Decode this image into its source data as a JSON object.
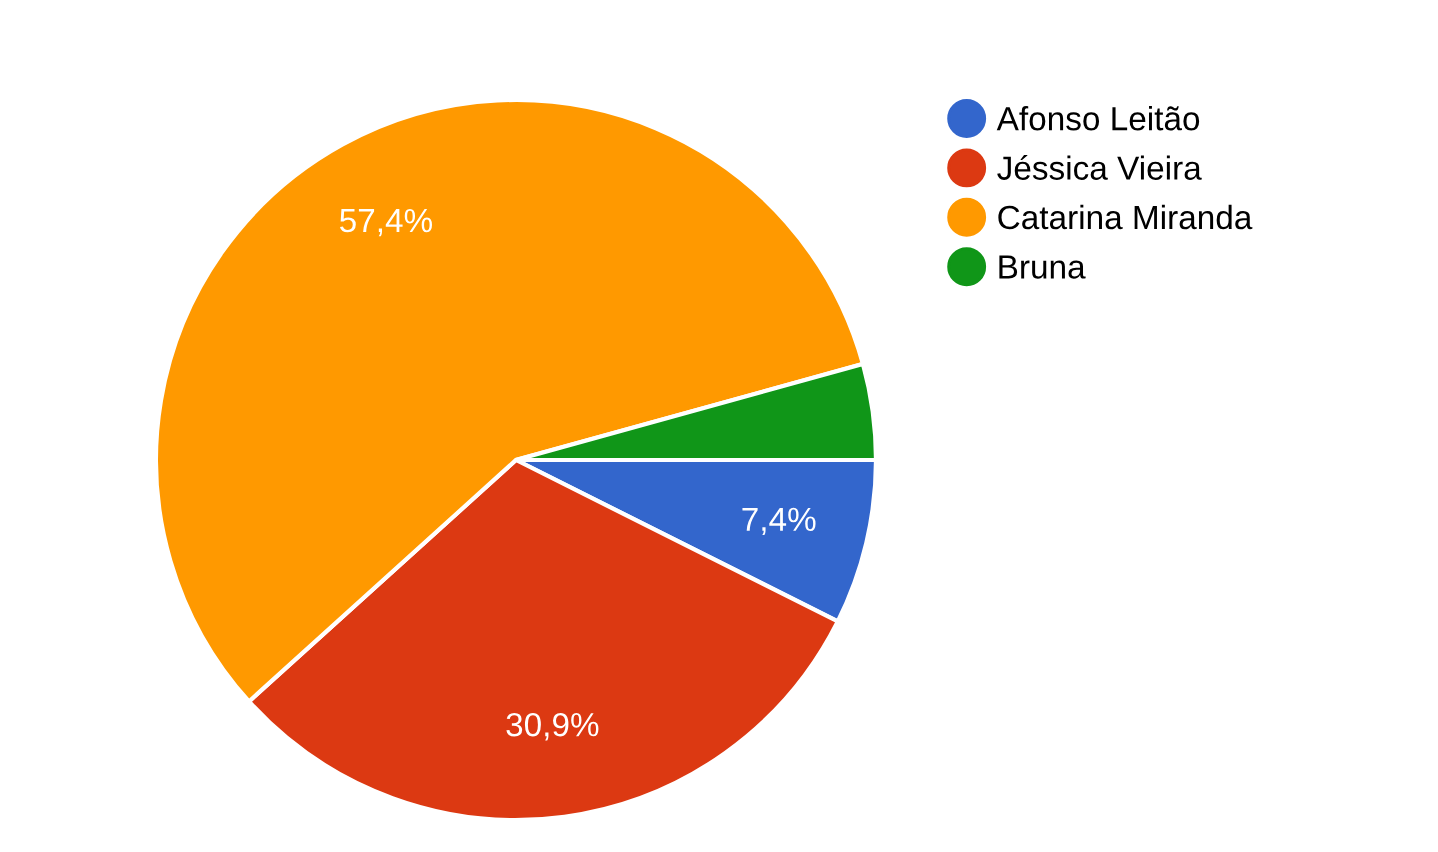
{
  "chart_data": {
    "type": "pie",
    "categories": [
      "Afonso Leitão",
      "Jéssica Vieira",
      "Catarina Miranda",
      "Bruna"
    ],
    "values": [
      7.4,
      30.9,
      57.4,
      4.3
    ],
    "value_labels": [
      "7,4%",
      "30,9%",
      "57,4%",
      null
    ],
    "colors": [
      "#3366cc",
      "#dc3912",
      "#ff9900",
      "#109618"
    ],
    "legend": "top right"
  }
}
